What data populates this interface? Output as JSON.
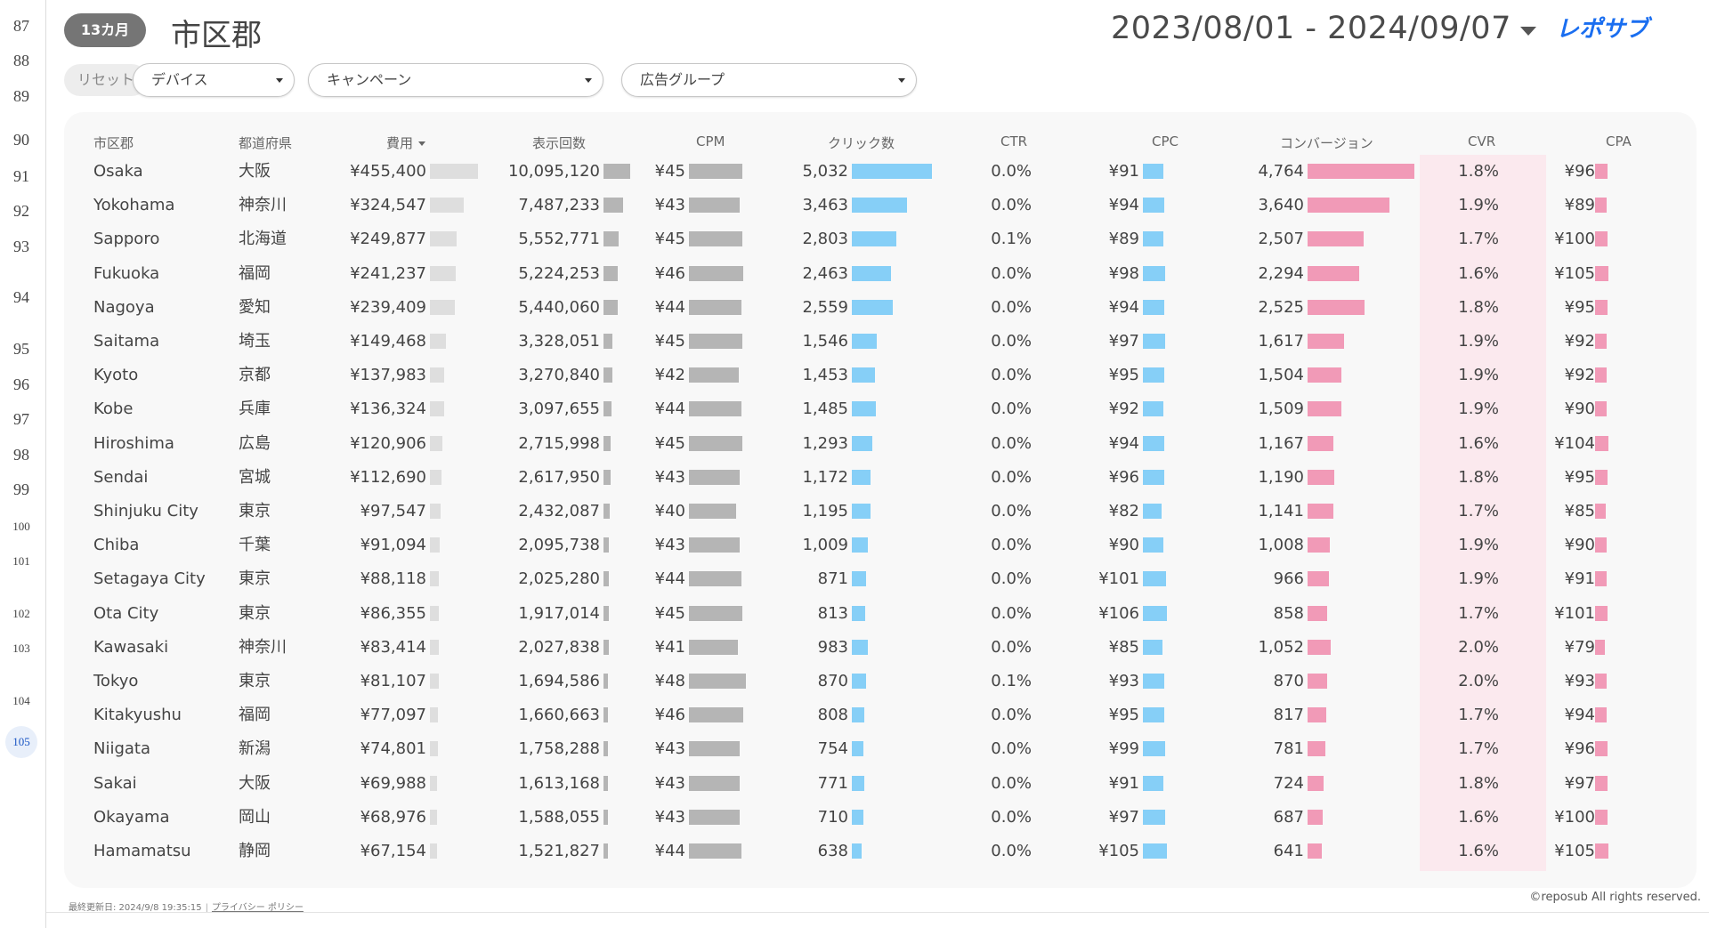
{
  "gutter": {
    "lines": [
      "87",
      "88",
      "89",
      "90",
      "91",
      "92",
      "93",
      "94",
      "95",
      "96",
      "97",
      "98",
      "99",
      "100",
      "101",
      "102",
      "103",
      "104",
      "105"
    ],
    "active": "105"
  },
  "header": {
    "badge": "13カ月",
    "title": "市区郡",
    "date_range": "2023/08/01 - 2024/09/07",
    "logo_text": "レポサブ"
  },
  "filters": {
    "reset_label": "リセット",
    "device": "デバイス",
    "campaign": "キャンペーン",
    "ad_group": "広告グループ"
  },
  "table": {
    "columns": [
      "市区郡",
      "都道府県",
      "費用",
      "表示回数",
      "CPM",
      "クリック数",
      "CTR",
      "CPC",
      "コンバージョン",
      "CVR",
      "CPA"
    ],
    "sort_column": "費用",
    "rows": [
      {
        "city": "Osaka",
        "pref": "大阪",
        "cost": "¥455,400",
        "impr": "10,095,120",
        "cpm": "¥45",
        "clicks": "5,032",
        "ctr": "0.0%",
        "cpc": "¥91",
        "conv": "4,764",
        "cvr": "1.8%",
        "cpa": "¥96"
      },
      {
        "city": "Yokohama",
        "pref": "神奈川",
        "cost": "¥324,547",
        "impr": "7,487,233",
        "cpm": "¥43",
        "clicks": "3,463",
        "ctr": "0.0%",
        "cpc": "¥94",
        "conv": "3,640",
        "cvr": "1.9%",
        "cpa": "¥89"
      },
      {
        "city": "Sapporo",
        "pref": "北海道",
        "cost": "¥249,877",
        "impr": "5,552,771",
        "cpm": "¥45",
        "clicks": "2,803",
        "ctr": "0.1%",
        "cpc": "¥89",
        "conv": "2,507",
        "cvr": "1.7%",
        "cpa": "¥100"
      },
      {
        "city": "Fukuoka",
        "pref": "福岡",
        "cost": "¥241,237",
        "impr": "5,224,253",
        "cpm": "¥46",
        "clicks": "2,463",
        "ctr": "0.0%",
        "cpc": "¥98",
        "conv": "2,294",
        "cvr": "1.6%",
        "cpa": "¥105"
      },
      {
        "city": "Nagoya",
        "pref": "愛知",
        "cost": "¥239,409",
        "impr": "5,440,060",
        "cpm": "¥44",
        "clicks": "2,559",
        "ctr": "0.0%",
        "cpc": "¥94",
        "conv": "2,525",
        "cvr": "1.8%",
        "cpa": "¥95"
      },
      {
        "city": "Saitama",
        "pref": "埼玉",
        "cost": "¥149,468",
        "impr": "3,328,051",
        "cpm": "¥45",
        "clicks": "1,546",
        "ctr": "0.0%",
        "cpc": "¥97",
        "conv": "1,617",
        "cvr": "1.9%",
        "cpa": "¥92"
      },
      {
        "city": "Kyoto",
        "pref": "京都",
        "cost": "¥137,983",
        "impr": "3,270,840",
        "cpm": "¥42",
        "clicks": "1,453",
        "ctr": "0.0%",
        "cpc": "¥95",
        "conv": "1,504",
        "cvr": "1.9%",
        "cpa": "¥92"
      },
      {
        "city": "Kobe",
        "pref": "兵庫",
        "cost": "¥136,324",
        "impr": "3,097,655",
        "cpm": "¥44",
        "clicks": "1,485",
        "ctr": "0.0%",
        "cpc": "¥92",
        "conv": "1,509",
        "cvr": "1.9%",
        "cpa": "¥90"
      },
      {
        "city": "Hiroshima",
        "pref": "広島",
        "cost": "¥120,906",
        "impr": "2,715,998",
        "cpm": "¥45",
        "clicks": "1,293",
        "ctr": "0.0%",
        "cpc": "¥94",
        "conv": "1,167",
        "cvr": "1.6%",
        "cpa": "¥104"
      },
      {
        "city": "Sendai",
        "pref": "宮城",
        "cost": "¥112,690",
        "impr": "2,617,950",
        "cpm": "¥43",
        "clicks": "1,172",
        "ctr": "0.0%",
        "cpc": "¥96",
        "conv": "1,190",
        "cvr": "1.8%",
        "cpa": "¥95"
      },
      {
        "city": "Shinjuku City",
        "pref": "東京",
        "cost": "¥97,547",
        "impr": "2,432,087",
        "cpm": "¥40",
        "clicks": "1,195",
        "ctr": "0.0%",
        "cpc": "¥82",
        "conv": "1,141",
        "cvr": "1.7%",
        "cpa": "¥85"
      },
      {
        "city": "Chiba",
        "pref": "千葉",
        "cost": "¥91,094",
        "impr": "2,095,738",
        "cpm": "¥43",
        "clicks": "1,009",
        "ctr": "0.0%",
        "cpc": "¥90",
        "conv": "1,008",
        "cvr": "1.9%",
        "cpa": "¥90"
      },
      {
        "city": "Setagaya City",
        "pref": "東京",
        "cost": "¥88,118",
        "impr": "2,025,280",
        "cpm": "¥44",
        "clicks": "871",
        "ctr": "0.0%",
        "cpc": "¥101",
        "conv": "966",
        "cvr": "1.9%",
        "cpa": "¥91"
      },
      {
        "city": "Ota City",
        "pref": "東京",
        "cost": "¥86,355",
        "impr": "1,917,014",
        "cpm": "¥45",
        "clicks": "813",
        "ctr": "0.0%",
        "cpc": "¥106",
        "conv": "858",
        "cvr": "1.7%",
        "cpa": "¥101"
      },
      {
        "city": "Kawasaki",
        "pref": "神奈川",
        "cost": "¥83,414",
        "impr": "2,027,838",
        "cpm": "¥41",
        "clicks": "983",
        "ctr": "0.0%",
        "cpc": "¥85",
        "conv": "1,052",
        "cvr": "2.0%",
        "cpa": "¥79"
      },
      {
        "city": "Tokyo",
        "pref": "東京",
        "cost": "¥81,107",
        "impr": "1,694,586",
        "cpm": "¥48",
        "clicks": "870",
        "ctr": "0.1%",
        "cpc": "¥93",
        "conv": "870",
        "cvr": "2.0%",
        "cpa": "¥93"
      },
      {
        "city": "Kitakyushu",
        "pref": "福岡",
        "cost": "¥77,097",
        "impr": "1,660,663",
        "cpm": "¥46",
        "clicks": "808",
        "ctr": "0.0%",
        "cpc": "¥95",
        "conv": "817",
        "cvr": "1.7%",
        "cpa": "¥94"
      },
      {
        "city": "Niigata",
        "pref": "新潟",
        "cost": "¥74,801",
        "impr": "1,758,288",
        "cpm": "¥43",
        "clicks": "754",
        "ctr": "0.0%",
        "cpc": "¥99",
        "conv": "781",
        "cvr": "1.7%",
        "cpa": "¥96"
      },
      {
        "city": "Sakai",
        "pref": "大阪",
        "cost": "¥69,988",
        "impr": "1,613,168",
        "cpm": "¥43",
        "clicks": "771",
        "ctr": "0.0%",
        "cpc": "¥91",
        "conv": "724",
        "cvr": "1.8%",
        "cpa": "¥97"
      },
      {
        "city": "Okayama",
        "pref": "岡山",
        "cost": "¥68,976",
        "impr": "1,588,055",
        "cpm": "¥43",
        "clicks": "710",
        "ctr": "0.0%",
        "cpc": "¥97",
        "conv": "687",
        "cvr": "1.6%",
        "cpa": "¥100"
      },
      {
        "city": "Hamamatsu",
        "pref": "静岡",
        "cost": "¥67,154",
        "impr": "1,521,827",
        "cpm": "¥44",
        "clicks": "638",
        "ctr": "0.0%",
        "cpc": "¥105",
        "conv": "641",
        "cvr": "1.6%",
        "cpa": "¥105"
      }
    ]
  },
  "footer": {
    "last_updated": "最終更新日: 2024/9/8 19:35:15",
    "privacy_link": "プライバシー ポリシー",
    "copyright": "©reposub All rights reserved."
  },
  "colors": {
    "bar_cost": "#dedede",
    "bar_gray": "#b5b5b5",
    "bar_blue": "#86cff7",
    "bar_pink": "#f19ab7",
    "cvr_highlight": "#fbe9ee"
  }
}
